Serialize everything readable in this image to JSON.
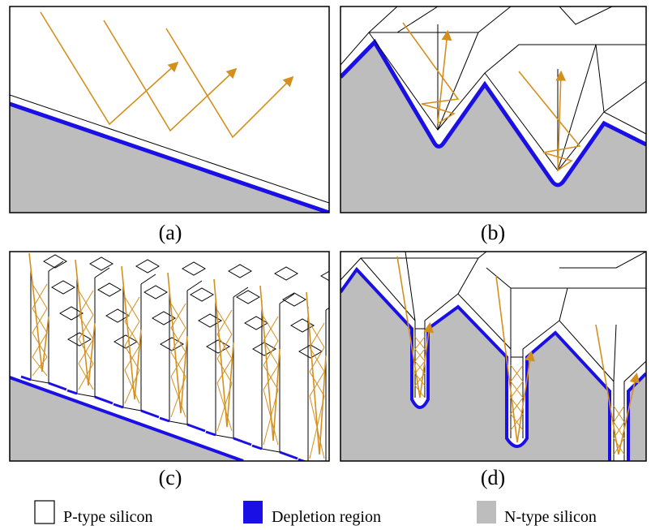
{
  "panels": [
    {
      "label": "(a)"
    },
    {
      "label": "(b)"
    },
    {
      "label": "(c)"
    },
    {
      "label": "(d)"
    }
  ],
  "legend": [
    {
      "label": "P-type silicon"
    },
    {
      "label": "Depletion region"
    },
    {
      "label": "N-type silicon"
    }
  ]
}
